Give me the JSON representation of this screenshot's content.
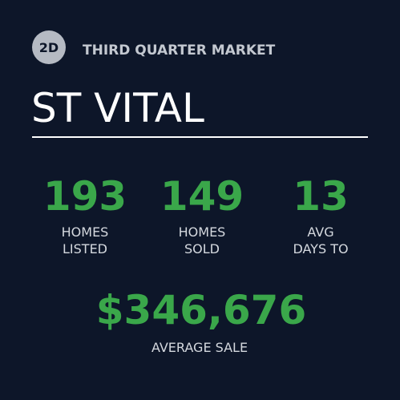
{
  "badge": "2D",
  "header": {
    "title": "THIRD QUARTER MARKET"
  },
  "area": "ST VITAL",
  "stats": [
    {
      "value": "193",
      "label_lines": [
        "HOMES",
        "LISTED"
      ]
    },
    {
      "value": "149",
      "label_lines": [
        "HOMES",
        "SOLD"
      ]
    },
    {
      "value": "13",
      "label_lines": [
        "AVG",
        "DAYS TO"
      ]
    }
  ],
  "average_sale": {
    "value": "$346,676",
    "label": "AVERAGE SALE"
  }
}
